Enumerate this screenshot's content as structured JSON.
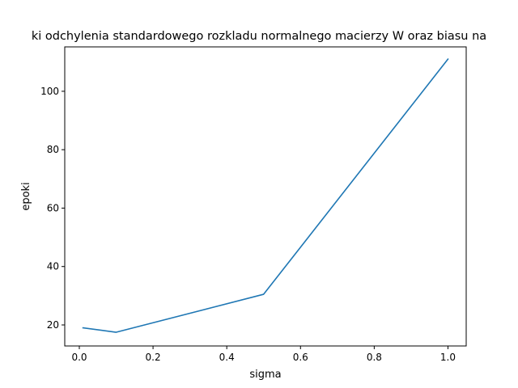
{
  "chart_data": {
    "type": "line",
    "title": "ki odchylenia standardowego rozkladu normalnego macierzy W oraz biasu na",
    "xlabel": "sigma",
    "ylabel": "epoki",
    "x_ticks": [
      "0.0",
      "0.2",
      "0.4",
      "0.6",
      "0.8",
      "1.0"
    ],
    "y_ticks": [
      "20",
      "40",
      "60",
      "80",
      "100"
    ],
    "xlim": [
      -0.0395,
      1.0495
    ],
    "ylim": [
      12.8,
      115.2
    ],
    "grid": false,
    "series": [
      {
        "x": [
          0.01,
          0.1,
          0.5,
          1.0
        ],
        "y": [
          19,
          17.5,
          30.5,
          111
        ],
        "color": "#1f77b4"
      }
    ]
  }
}
